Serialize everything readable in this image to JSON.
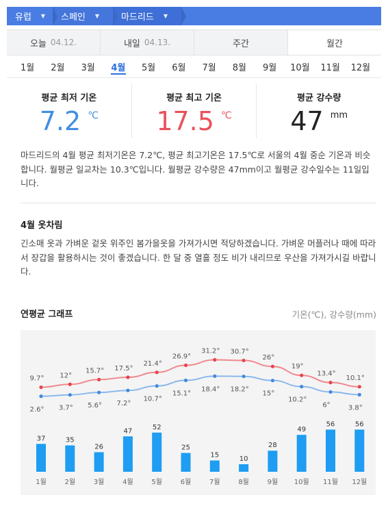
{
  "breadcrumb": [
    "유럽",
    "스페인",
    "마드리드"
  ],
  "tabs": [
    {
      "label": "오늘",
      "date": "04.12."
    },
    {
      "label": "내일",
      "date": "04.13."
    },
    {
      "label": "주간",
      "date": ""
    },
    {
      "label": "월간",
      "date": ""
    }
  ],
  "months": [
    "1월",
    "2월",
    "3월",
    "4월",
    "5월",
    "6월",
    "7월",
    "8월",
    "9월",
    "10월",
    "11월",
    "12월"
  ],
  "active_month_index": 3,
  "stats": {
    "min": {
      "label": "평균 최저 기온",
      "value": "7.2",
      "unit": "℃"
    },
    "max": {
      "label": "평균 최고 기온",
      "value": "17.5",
      "unit": "℃"
    },
    "rain": {
      "label": "평균 강수량",
      "value": "47",
      "unit": "mm"
    }
  },
  "summary": "마드리드의 4월 평균 최저기온은 7.2℃, 평균 최고기온은 17.5℃로 서울의 4월 중순 기온과 비슷합니다. 월평균 일교차는 10.3℃입니다. 월평균 강수량은 47mm이고 월평균 강수일수는 11일입니다.",
  "outfit": {
    "title": "4월 옷차림",
    "text": "긴소매 옷과 가벼운 겉옷 위주인 봄가을옷을 가져가시면 적당하겠습니다. 가벼운 머플러나 때에 따라서 장갑을 활용하시는 것이 좋겠습니다. 한 달 중 열흘 정도 비가 내리므로 우산을 가져가시길 바랍니다."
  },
  "graph": {
    "title": "연평균 그래프",
    "legend": "기온(℃), 강수량(mm)"
  },
  "colors": {
    "accent": "#2d6fe0",
    "max_line": "#f0898e",
    "max_point": "#e8434d",
    "min_line": "#8ab8ec",
    "min_point": "#3d8ae0",
    "bar": "#1e9df2"
  },
  "chart_data": {
    "type": "line+bar",
    "categories": [
      "1월",
      "2월",
      "3월",
      "4월",
      "5월",
      "6월",
      "7월",
      "8월",
      "9월",
      "10월",
      "11월",
      "12월"
    ],
    "series": [
      {
        "values": [
          9.7,
          12,
          15.7,
          17.5,
          21.4,
          26.9,
          31.2,
          30.7,
          26,
          19,
          13.4,
          10.1
        ],
        "labels": [
          "9.7°",
          "12°",
          "15.7°",
          "17.5°",
          "21.4°",
          "26.9°",
          "31.2°",
          "30.7°",
          "26°",
          "19°",
          "13.4°",
          "10.1°"
        ]
      },
      {
        "values": [
          2.6,
          3.7,
          5.6,
          7.2,
          10.7,
          15.1,
          18.4,
          18.2,
          15,
          10.2,
          6,
          3.8
        ],
        "labels": [
          "2.6°",
          "3.7°",
          "5.6°",
          "7.2°",
          "10.7°",
          "15.1°",
          "18.4°",
          "18.2°",
          "15°",
          "10.2°",
          "6°",
          "3.8°"
        ]
      },
      {
        "values": [
          37,
          35,
          26,
          47,
          52,
          25,
          15,
          10,
          28,
          49,
          56,
          56
        ]
      }
    ]
  }
}
